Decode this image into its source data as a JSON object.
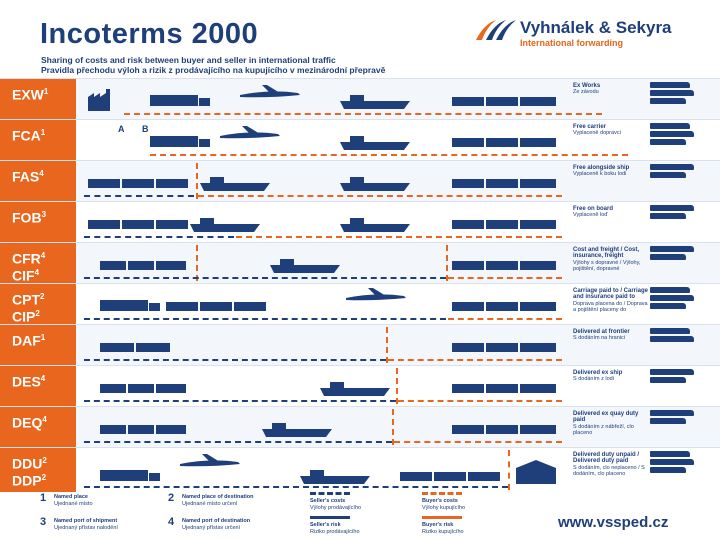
{
  "header": {
    "title": "Incoterms 2000",
    "subtitle_en": "Sharing of costs and risk between buyer and seller in international traffic",
    "subtitle_cz": "Pravidla přechodu výloh a rizik z prodávajícího na kupujícího v mezinárodní přepravě",
    "company": "Vyhnálek & Sekyra",
    "company_tag": "International forwarding"
  },
  "rows": [
    {
      "code": "EXW",
      "sup": "1",
      "desc_en": "Ex Works",
      "desc_cz": "Ze závodu"
    },
    {
      "code": "FCA",
      "sup": "1",
      "desc_en": "Free carrier",
      "desc_cz": "Vyplaceně dopravci"
    },
    {
      "code": "FAS",
      "sup": "4",
      "desc_en": "Free alongside ship",
      "desc_cz": "Vyplaceně k boku lodi"
    },
    {
      "code": "FOB",
      "sup": "3",
      "desc_en": "Free on board",
      "desc_cz": "Vyplaceně loď"
    },
    {
      "code": "CFR",
      "sup": "4",
      "code2": "CIF",
      "sup2": "4",
      "desc_en": "Cost and freight / Cost, insurance, freight",
      "desc_cz": "Výlohy s dopravné / Výlohy, pojištění, dopravné"
    },
    {
      "code": "CPT",
      "sup": "2",
      "code2": "CIP",
      "sup2": "2",
      "desc_en": "Carriage paid to / Carriage and insurance paid to",
      "desc_cz": "Doprava placena do / Doprava a pojištění placeny do"
    },
    {
      "code": "DAF",
      "sup": "1",
      "desc_en": "Delivered at frontier",
      "desc_cz": "S dodáním na hranici"
    },
    {
      "code": "DES",
      "sup": "4",
      "desc_en": "Delivered ex ship",
      "desc_cz": "S dodáním z lodi"
    },
    {
      "code": "DEQ",
      "sup": "4",
      "desc_en": "Delivered ex quay duty paid",
      "desc_cz": "S dodáním z nábřeží, clo placeno"
    },
    {
      "code": "DDU",
      "sup": "2",
      "code2": "DDP",
      "sup2": "2",
      "desc_en": "Delivered duty unpaid / Delivered duty paid",
      "desc_cz": "S dodáním, clo neplaceno / S dodáním, clo placeno"
    }
  ],
  "fca_points": [
    "A",
    "B"
  ],
  "legend": {
    "items": [
      {
        "num": "1",
        "en": "Named place",
        "cz": "Ujednané místo"
      },
      {
        "num": "2",
        "en": "Named place of destination",
        "cz": "Ujednané místo určení"
      },
      {
        "num": "3",
        "en": "Named port of shipment",
        "cz": "Ujednaný přístav nalodění"
      },
      {
        "num": "4",
        "en": "Named port of destination",
        "cz": "Ujednaný přístav určení"
      }
    ],
    "seller_costs": "Seller's costs",
    "seller_costs_cz": "Výlohy prodávajícího",
    "buyer_costs": "Buyer's costs",
    "buyer_costs_cz": "Výlohy kupujícího",
    "seller_risk": "Seller's risk",
    "seller_risk_cz": "Riziko prodávajícího",
    "buyer_risk": "Buyer's risk",
    "buyer_risk_cz": "Riziko kupujícího"
  },
  "website": "www.vssped.cz",
  "colors": {
    "navy": "#1f3f7a",
    "orange": "#e8661d"
  }
}
